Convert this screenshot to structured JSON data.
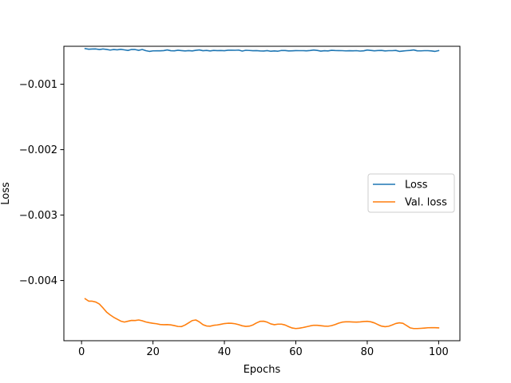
{
  "chart_data": {
    "type": "line",
    "title": "",
    "xlabel": "Epochs",
    "ylabel": "Loss",
    "xlim": [
      -4.95,
      105.95
    ],
    "ylim": [
      -0.00492,
      -0.00042
    ],
    "xticks": [
      0,
      20,
      40,
      60,
      80,
      100
    ],
    "xtick_labels": [
      "0",
      "20",
      "40",
      "60",
      "80",
      "100"
    ],
    "yticks": [
      -0.001,
      -0.002,
      -0.003,
      -0.004
    ],
    "ytick_labels": [
      "−0.001",
      "−0.002",
      "−0.003",
      "−0.004"
    ],
    "grid": false,
    "legend_position": "center-right",
    "x": [
      1,
      2,
      3,
      4,
      5,
      6,
      7,
      8,
      9,
      10,
      11,
      12,
      13,
      14,
      15,
      16,
      17,
      18,
      19,
      20,
      21,
      22,
      23,
      24,
      25,
      26,
      27,
      28,
      29,
      30,
      31,
      32,
      33,
      34,
      35,
      36,
      37,
      38,
      39,
      40,
      41,
      42,
      43,
      44,
      45,
      46,
      47,
      48,
      49,
      50,
      51,
      52,
      53,
      54,
      55,
      56,
      57,
      58,
      59,
      60,
      61,
      62,
      63,
      64,
      65,
      66,
      67,
      68,
      69,
      70,
      71,
      72,
      73,
      74,
      75,
      76,
      77,
      78,
      79,
      80,
      81,
      82,
      83,
      84,
      85,
      86,
      87,
      88,
      89,
      90,
      91,
      92,
      93,
      94,
      95,
      96,
      97,
      98,
      99,
      100
    ],
    "series": [
      {
        "name": "Loss",
        "color": "#1f77b4",
        "values": [
          -0.000455,
          -0.000465,
          -0.000462,
          -0.000461,
          -0.00047,
          -0.000461,
          -0.000468,
          -0.000478,
          -0.00047,
          -0.000474,
          -0.000467,
          -0.000475,
          -0.000483,
          -0.000469,
          -0.00047,
          -0.000482,
          -0.000469,
          -0.000487,
          -0.000498,
          -0.00049,
          -0.000489,
          -0.000489,
          -0.000486,
          -0.000476,
          -0.000488,
          -0.000489,
          -0.00048,
          -0.000486,
          -0.000491,
          -0.000486,
          -0.000491,
          -0.000482,
          -0.000476,
          -0.000488,
          -0.000483,
          -0.000491,
          -0.000483,
          -0.000486,
          -0.000485,
          -0.000488,
          -0.00048,
          -0.00048,
          -0.000481,
          -0.000478,
          -0.000493,
          -0.000481,
          -0.000484,
          -0.000488,
          -0.000486,
          -0.000491,
          -0.000492,
          -0.000486,
          -0.000496,
          -0.000491,
          -0.000495,
          -0.000484,
          -0.000485,
          -0.000491,
          -0.000489,
          -0.000486,
          -0.000487,
          -0.000487,
          -0.000489,
          -0.000485,
          -0.000477,
          -0.000483,
          -0.000494,
          -0.000488,
          -0.000491,
          -0.000482,
          -0.000485,
          -0.000486,
          -0.000487,
          -0.00049,
          -0.000488,
          -0.000489,
          -0.000487,
          -0.000493,
          -0.000489,
          -0.000477,
          -0.000483,
          -0.000489,
          -0.000485,
          -0.000483,
          -0.000491,
          -0.000487,
          -0.000487,
          -0.000483,
          -0.000498,
          -0.000492,
          -0.000487,
          -0.000483,
          -0.000476,
          -0.000489,
          -0.00049,
          -0.000487,
          -0.000487,
          -0.000491,
          -0.000498,
          -0.000486
        ]
      },
      {
        "name": "Val. loss",
        "color": "#ff7f0e",
        "values": [
          -0.004278,
          -0.004315,
          -0.004316,
          -0.004329,
          -0.00436,
          -0.004418,
          -0.004482,
          -0.004525,
          -0.004562,
          -0.004592,
          -0.004621,
          -0.004635,
          -0.004622,
          -0.00461,
          -0.004611,
          -0.004603,
          -0.004615,
          -0.004633,
          -0.004645,
          -0.004654,
          -0.004661,
          -0.004672,
          -0.004675,
          -0.004674,
          -0.004678,
          -0.004689,
          -0.004702,
          -0.004704,
          -0.00468,
          -0.004647,
          -0.004612,
          -0.004603,
          -0.004633,
          -0.004675,
          -0.004695,
          -0.004698,
          -0.004685,
          -0.004679,
          -0.004669,
          -0.004658,
          -0.004653,
          -0.004654,
          -0.004661,
          -0.004675,
          -0.004692,
          -0.004701,
          -0.004697,
          -0.004679,
          -0.004648,
          -0.004624,
          -0.004622,
          -0.004637,
          -0.004663,
          -0.004675,
          -0.004667,
          -0.004667,
          -0.00468,
          -0.004705,
          -0.004726,
          -0.004734,
          -0.004729,
          -0.004719,
          -0.004707,
          -0.004694,
          -0.004684,
          -0.004684,
          -0.004691,
          -0.004697,
          -0.004699,
          -0.00469,
          -0.004673,
          -0.004652,
          -0.004636,
          -0.004631,
          -0.004631,
          -0.004634,
          -0.004636,
          -0.004633,
          -0.004627,
          -0.004624,
          -0.004631,
          -0.004648,
          -0.004674,
          -0.004697,
          -0.004706,
          -0.004699,
          -0.004679,
          -0.004657,
          -0.004646,
          -0.004654,
          -0.004688,
          -0.004723,
          -0.004734,
          -0.004734,
          -0.004731,
          -0.004727,
          -0.004722,
          -0.004721,
          -0.004721,
          -0.004724
        ]
      }
    ]
  }
}
